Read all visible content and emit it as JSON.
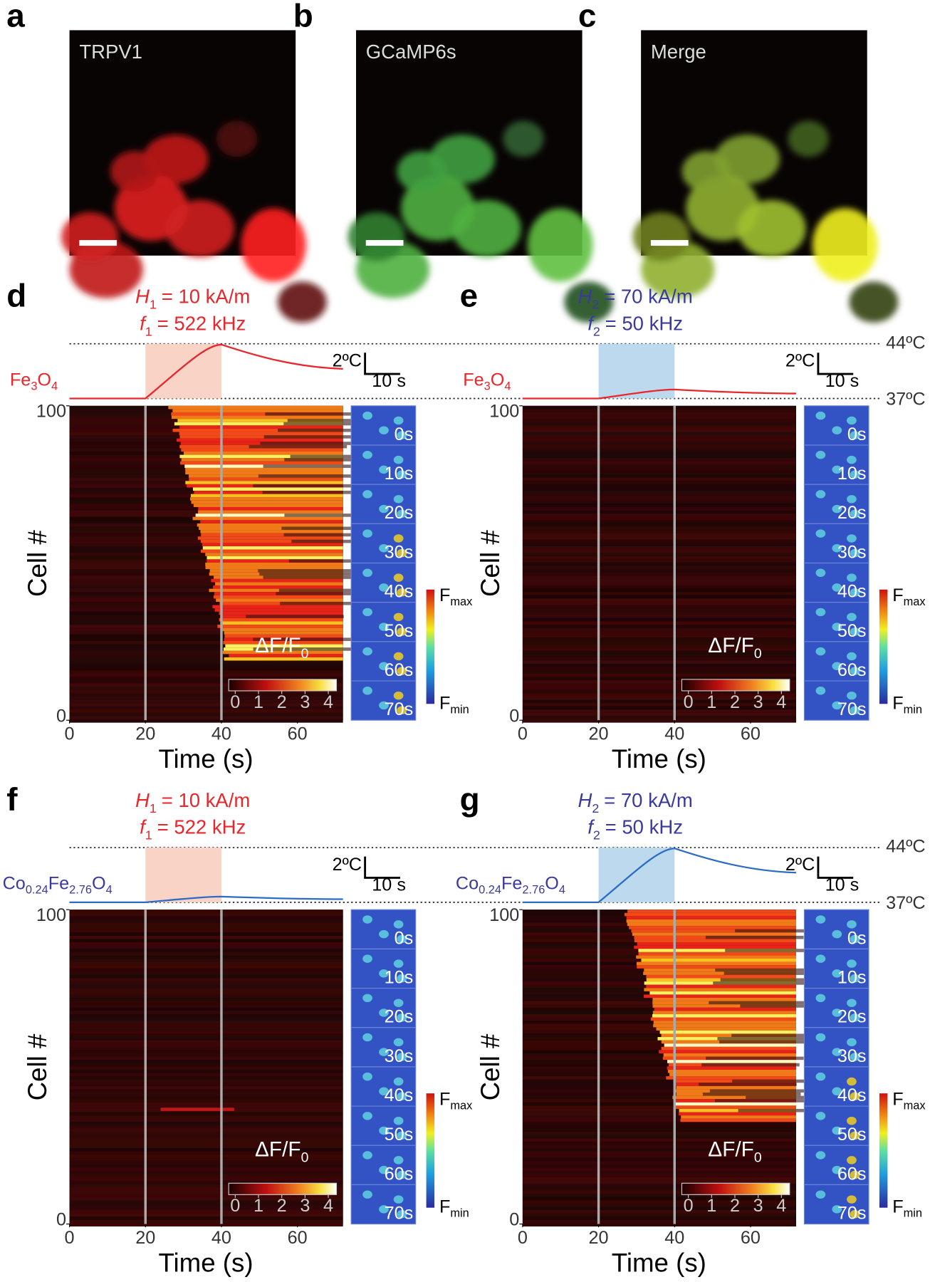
{
  "image_panels": [
    {
      "label": "a",
      "name": "TRPV1"
    },
    {
      "label": "b",
      "name": "GCaMP6s"
    },
    {
      "label": "c",
      "name": "Merge"
    }
  ],
  "heatmap_panels": [
    {
      "label": "d",
      "title_color": "#e8262b",
      "field": [
        "H",
        "1",
        "= 10 kA/m"
      ],
      "frequency": [
        "f",
        "1",
        "= 522 kHz"
      ],
      "material": [
        "Fe",
        "3",
        "O",
        "4"
      ],
      "material_color": "#e8262b",
      "scale_temp": "2ºC",
      "scale_time": "10 s",
      "x_label": "Time (s)",
      "y_label": "Cell #",
      "xlim": [
        0,
        72
      ],
      "xticks": [
        0,
        20,
        40,
        60
      ],
      "ylim": [
        0,
        100
      ],
      "yticks": [
        0,
        100
      ],
      "colorbar_label": [
        "ΔF/F",
        "0"
      ],
      "colorbar_ticks": [
        0,
        1,
        2,
        3,
        4
      ],
      "frame_labels": [
        "0s",
        "10s",
        "20s",
        "30s",
        "40s",
        "50s",
        "60s",
        "70s"
      ],
      "fmax": [
        "F",
        "max"
      ],
      "fmin": [
        "F",
        "min"
      ]
    },
    {
      "label": "e",
      "title_color": "#3a3a9e",
      "field": [
        "H",
        "2",
        "= 70 kA/m"
      ],
      "frequency": [
        "f",
        "2",
        "= 50 kHz"
      ],
      "material": [
        "Fe",
        "3",
        "O",
        "4"
      ],
      "material_color": "#e8262b",
      "scale_temp": "2ºC",
      "scale_time": "10 s",
      "temp_high": "44ºC",
      "temp_low": "37ºC",
      "x_label": "Time (s)",
      "y_label": "Cell #",
      "xlim": [
        0,
        72
      ],
      "xticks": [
        0,
        20,
        40,
        60
      ],
      "ylim": [
        0,
        100
      ],
      "yticks": [
        0,
        100
      ],
      "colorbar_label": [
        "ΔF/F",
        "0"
      ],
      "colorbar_ticks": [
        0,
        1,
        2,
        3,
        4
      ],
      "frame_labels": [
        "0s",
        "10s",
        "20s",
        "30s",
        "40s",
        "50s",
        "60s",
        "70s"
      ],
      "fmax": [
        "F",
        "max"
      ],
      "fmin": [
        "F",
        "min"
      ]
    },
    {
      "label": "f",
      "title_color": "#e8262b",
      "field": [
        "H",
        "1",
        "= 10 kA/m"
      ],
      "frequency": [
        "f",
        "1",
        "= 522 kHz"
      ],
      "material": [
        "Co",
        "0.24",
        "Fe",
        "2.76",
        "O",
        "4"
      ],
      "material_color": "#3a3a9e",
      "scale_temp": "2ºC",
      "scale_time": "10 s",
      "x_label": "Time (s)",
      "y_label": "Cell #",
      "xlim": [
        0,
        72
      ],
      "xticks": [
        0,
        20,
        40,
        60
      ],
      "ylim": [
        0,
        100
      ],
      "yticks": [
        0,
        100
      ],
      "colorbar_label": [
        "ΔF/F",
        "0"
      ],
      "colorbar_ticks": [
        0,
        1,
        2,
        3,
        4
      ],
      "frame_labels": [
        "0s",
        "10s",
        "20s",
        "30s",
        "40s",
        "50s",
        "60s",
        "70s"
      ],
      "fmax": [
        "F",
        "max"
      ],
      "fmin": [
        "F",
        "min"
      ]
    },
    {
      "label": "g",
      "title_color": "#3a3a9e",
      "field": [
        "H",
        "2",
        "= 70 kA/m"
      ],
      "frequency": [
        "f",
        "2",
        "= 50 kHz"
      ],
      "material": [
        "Co",
        "0.24",
        "Fe",
        "2.76",
        "O",
        "4"
      ],
      "material_color": "#3a3a9e",
      "scale_temp": "2ºC",
      "scale_time": "10 s",
      "temp_high": "44ºC",
      "temp_low": "37ºC",
      "x_label": "Time (s)",
      "y_label": "Cell #",
      "xlim": [
        0,
        72
      ],
      "xticks": [
        0,
        20,
        40,
        60
      ],
      "ylim": [
        0,
        100
      ],
      "yticks": [
        0,
        100
      ],
      "colorbar_label": [
        "ΔF/F",
        "0"
      ],
      "colorbar_ticks": [
        0,
        1,
        2,
        3,
        4
      ],
      "frame_labels": [
        "0s",
        "10s",
        "20s",
        "30s",
        "40s",
        "50s",
        "60s",
        "70s"
      ],
      "fmax": [
        "F",
        "max"
      ],
      "fmin": [
        "F",
        "min"
      ]
    }
  ]
}
